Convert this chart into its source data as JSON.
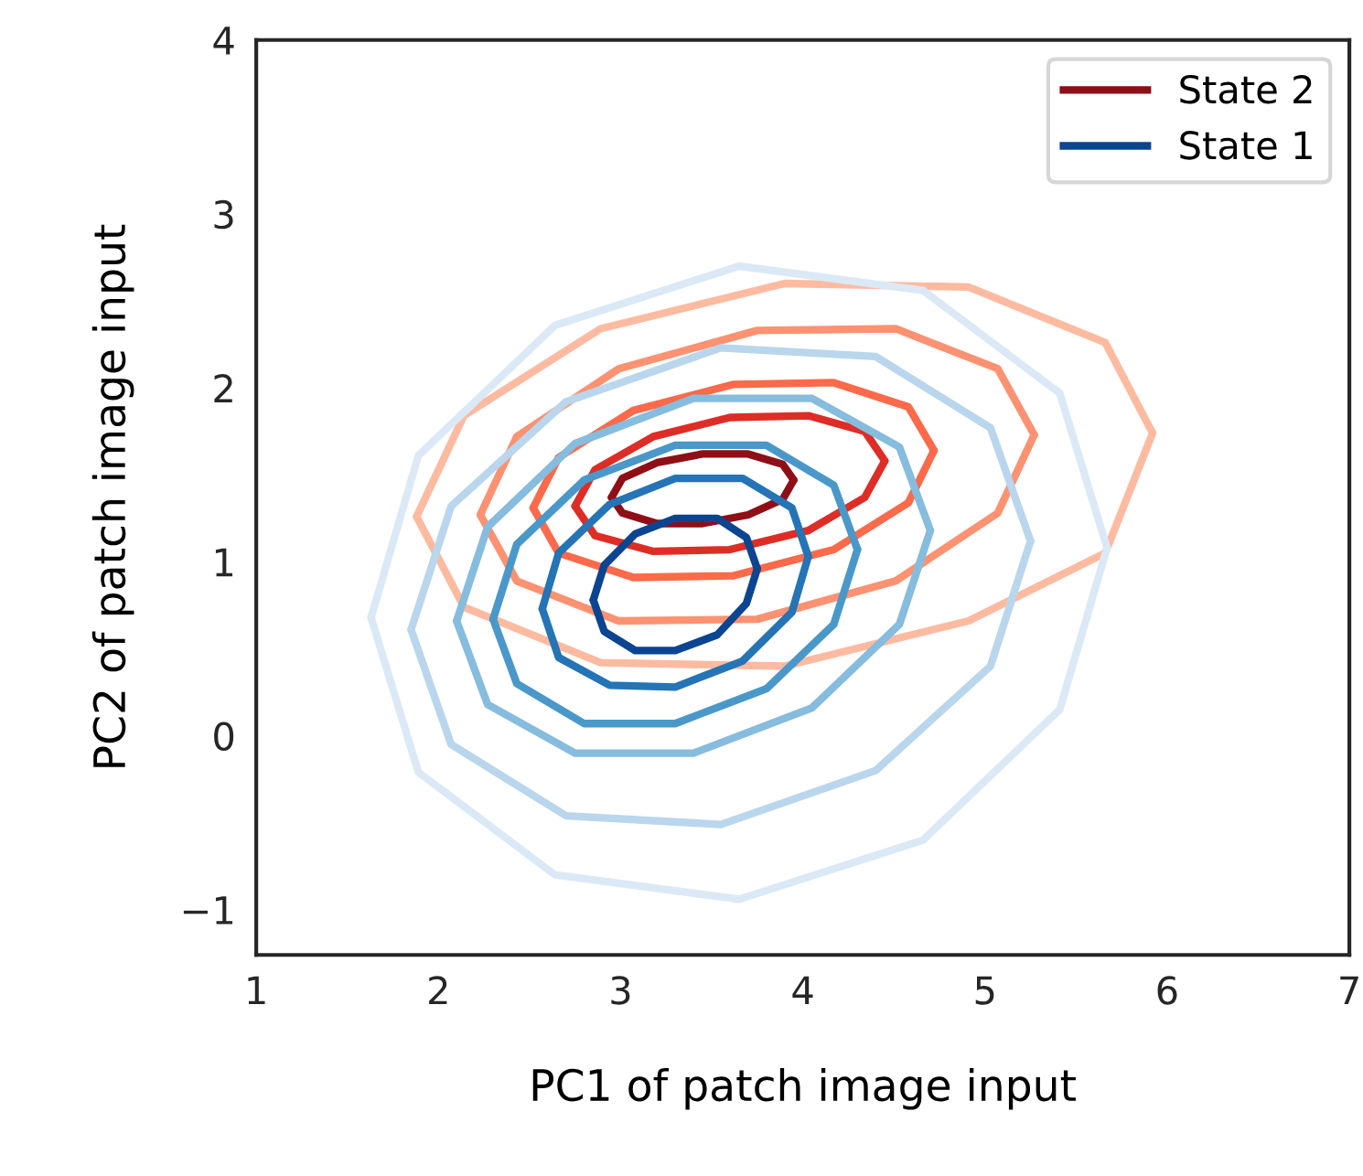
{
  "chart_data": {
    "type": "line",
    "xlabel": "PC1 of patch image input",
    "ylabel": "PC2 of patch image input",
    "xlim": [
      1,
      7
    ],
    "xticks": [
      1,
      2,
      3,
      4,
      5,
      6,
      7
    ],
    "ylim": [
      -1.26,
      4
    ],
    "yticks": [
      -1,
      0,
      1,
      2,
      3,
      4
    ],
    "grid": false,
    "legend": "top right",
    "marker": "none",
    "line_style": "solid",
    "series": [
      {
        "color": "#fcbba1",
        "x": [
          1.88,
          2.14,
          2.89,
          3.9,
          4.91,
          5.66,
          5.92
        ],
        "values": [
          1.26,
          1.84,
          2.34,
          2.6,
          2.58,
          2.26,
          1.74
        ]
      },
      {
        "color": "#fcbba1",
        "x": [
          1.88,
          2.14,
          2.89,
          3.9,
          4.91,
          5.66,
          5.92
        ],
        "values": [
          1.26,
          0.74,
          0.42,
          0.4,
          0.66,
          1.05,
          1.74
        ]
      },
      {
        "color": "#fc9272",
        "x": [
          2.23,
          2.43,
          2.99,
          3.75,
          4.51,
          5.07,
          5.27
        ],
        "values": [
          1.27,
          1.72,
          2.11,
          2.33,
          2.34,
          2.11,
          1.73
        ]
      },
      {
        "color": "#fc9272",
        "x": [
          2.23,
          2.43,
          2.99,
          3.75,
          4.51,
          5.07,
          5.27
        ],
        "values": [
          1.27,
          0.89,
          0.66,
          0.67,
          0.89,
          1.28,
          1.73
        ]
      },
      {
        "color": "#fb6a4a",
        "x": [
          2.52,
          2.66,
          3.07,
          3.62,
          4.17,
          4.58,
          4.72
        ],
        "values": [
          1.31,
          1.6,
          1.87,
          2.02,
          2.03,
          1.89,
          1.64
        ]
      },
      {
        "color": "#fb6a4a",
        "x": [
          2.52,
          2.66,
          3.07,
          3.62,
          4.17,
          4.58,
          4.72
        ],
        "values": [
          1.31,
          1.05,
          0.91,
          0.92,
          1.07,
          1.34,
          1.64
        ]
      },
      {
        "color": "#de2d26",
        "x": [
          2.75,
          2.86,
          3.18,
          3.6,
          4.03,
          4.34,
          4.45
        ],
        "values": [
          1.32,
          1.53,
          1.72,
          1.83,
          1.84,
          1.75,
          1.58
        ]
      },
      {
        "color": "#de2d26",
        "x": [
          2.75,
          2.86,
          3.18,
          3.6,
          4.03,
          4.34,
          4.45
        ],
        "values": [
          1.32,
          1.15,
          1.06,
          1.07,
          1.18,
          1.37,
          1.58
        ]
      },
      {
        "name": "State 2",
        "color": "#8f0f17",
        "x": [
          2.95,
          3.01,
          3.2,
          3.45,
          3.7,
          3.89,
          3.95
        ],
        "values": [
          1.37,
          1.48,
          1.57,
          1.62,
          1.62,
          1.56,
          1.47
        ]
      },
      {
        "color": "#8f0f17",
        "x": [
          2.95,
          3.01,
          3.2,
          3.45,
          3.7,
          3.89,
          3.95
        ],
        "values": [
          1.37,
          1.28,
          1.22,
          1.22,
          1.27,
          1.36,
          1.47
        ]
      },
      {
        "color": "#dbe9f6",
        "x": [
          1.63,
          1.89,
          2.64,
          3.65,
          4.66,
          5.41,
          5.67
        ],
        "values": [
          0.68,
          1.61,
          2.36,
          2.7,
          2.56,
          1.97,
          1.08
        ]
      },
      {
        "color": "#dbe9f6",
        "x": [
          1.63,
          1.89,
          2.64,
          3.65,
          4.66,
          5.41,
          5.67
        ],
        "values": [
          0.68,
          -0.21,
          -0.8,
          -0.94,
          -0.6,
          0.15,
          1.08
        ]
      },
      {
        "color": "#b9d6ec",
        "x": [
          1.85,
          2.07,
          2.7,
          3.55,
          4.4,
          5.03,
          5.25
        ],
        "values": [
          0.61,
          1.32,
          1.92,
          2.23,
          2.18,
          1.77,
          1.12
        ]
      },
      {
        "color": "#b9d6ec",
        "x": [
          1.85,
          2.07,
          2.7,
          3.55,
          4.4,
          5.03,
          5.25
        ],
        "values": [
          0.61,
          -0.05,
          -0.46,
          -0.51,
          -0.2,
          0.4,
          1.12
        ]
      },
      {
        "color": "#86bcdd",
        "x": [
          2.1,
          2.27,
          2.75,
          3.4,
          4.05,
          4.53,
          4.7
        ],
        "values": [
          0.66,
          1.2,
          1.68,
          1.94,
          1.94,
          1.66,
          1.18
        ]
      },
      {
        "color": "#86bcdd",
        "x": [
          2.1,
          2.27,
          2.75,
          3.4,
          4.05,
          4.53,
          4.7
        ],
        "values": [
          0.66,
          0.18,
          -0.1,
          -0.1,
          0.16,
          0.64,
          1.18
        ]
      },
      {
        "color": "#4a98c9",
        "x": [
          2.3,
          2.43,
          2.8,
          3.3,
          3.8,
          4.17,
          4.3
        ],
        "values": [
          0.67,
          1.1,
          1.47,
          1.67,
          1.67,
          1.44,
          1.07
        ]
      },
      {
        "color": "#4a98c9",
        "x": [
          2.3,
          2.43,
          2.8,
          3.3,
          3.8,
          4.17,
          4.3
        ],
        "values": [
          0.67,
          0.3,
          0.07,
          0.07,
          0.27,
          0.64,
          1.07
        ]
      },
      {
        "color": "#2474b6",
        "x": [
          2.57,
          2.66,
          2.94,
          3.3,
          3.67,
          3.94,
          4.03
        ],
        "values": [
          0.73,
          1.05,
          1.33,
          1.48,
          1.48,
          1.31,
          1.03
        ]
      },
      {
        "color": "#2474b6",
        "x": [
          2.57,
          2.66,
          2.94,
          3.3,
          3.67,
          3.94,
          4.03
        ],
        "values": [
          0.73,
          0.45,
          0.29,
          0.28,
          0.43,
          0.71,
          1.03
        ]
      },
      {
        "name": "State 1",
        "color": "#0b4591",
        "x": [
          2.85,
          2.91,
          3.08,
          3.3,
          3.53,
          3.69,
          3.75
        ],
        "values": [
          0.78,
          0.98,
          1.16,
          1.25,
          1.25,
          1.14,
          0.96
        ]
      },
      {
        "color": "#0b4591",
        "x": [
          2.85,
          2.91,
          3.08,
          3.3,
          3.53,
          3.69,
          3.75
        ],
        "values": [
          0.78,
          0.6,
          0.49,
          0.49,
          0.58,
          0.76,
          0.96
        ]
      }
    ]
  }
}
